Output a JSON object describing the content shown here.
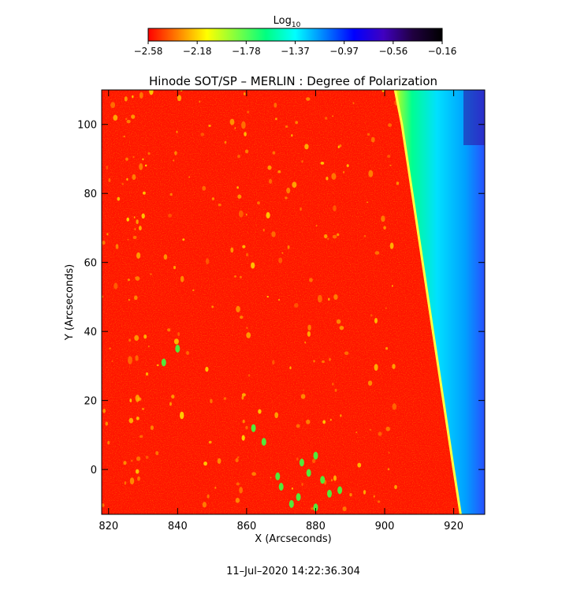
{
  "chart_data": {
    "type": "heatmap",
    "title": "Hinode SOT/SP – MERLIN : Degree of Polarization",
    "xlabel": "X (Arcseconds)",
    "ylabel": "Y (Arcseconds)",
    "xlim": [
      818,
      929
    ],
    "ylim": [
      -13,
      110
    ],
    "xticks": [
      820,
      840,
      860,
      880,
      900,
      920
    ],
    "yticks": [
      0,
      20,
      40,
      60,
      80,
      100
    ],
    "colorbar": {
      "label": "Log",
      "label_sub": "10",
      "scale": "log10",
      "range": [
        -2.58,
        -0.16
      ],
      "ticks": [
        "−2.58",
        "−2.18",
        "−1.78",
        "−1.37",
        "−0.97",
        "−0.56",
        "−0.16"
      ],
      "colors": [
        "#ff0000",
        "#ff8000",
        "#ffff00",
        "#80ff40",
        "#00ff80",
        "#00ffff",
        "#0080ff",
        "#0000ff",
        "#4000c0",
        "#200040",
        "#000000"
      ]
    },
    "limb_curve_x_at_y": [
      [
        -13,
        922
      ],
      [
        0,
        920
      ],
      [
        20,
        917
      ],
      [
        40,
        914
      ],
      [
        60,
        911
      ],
      [
        80,
        908
      ],
      [
        100,
        905
      ],
      [
        110,
        903
      ]
    ],
    "timestamp": "11–Jul–2020 14:22:36.304"
  }
}
